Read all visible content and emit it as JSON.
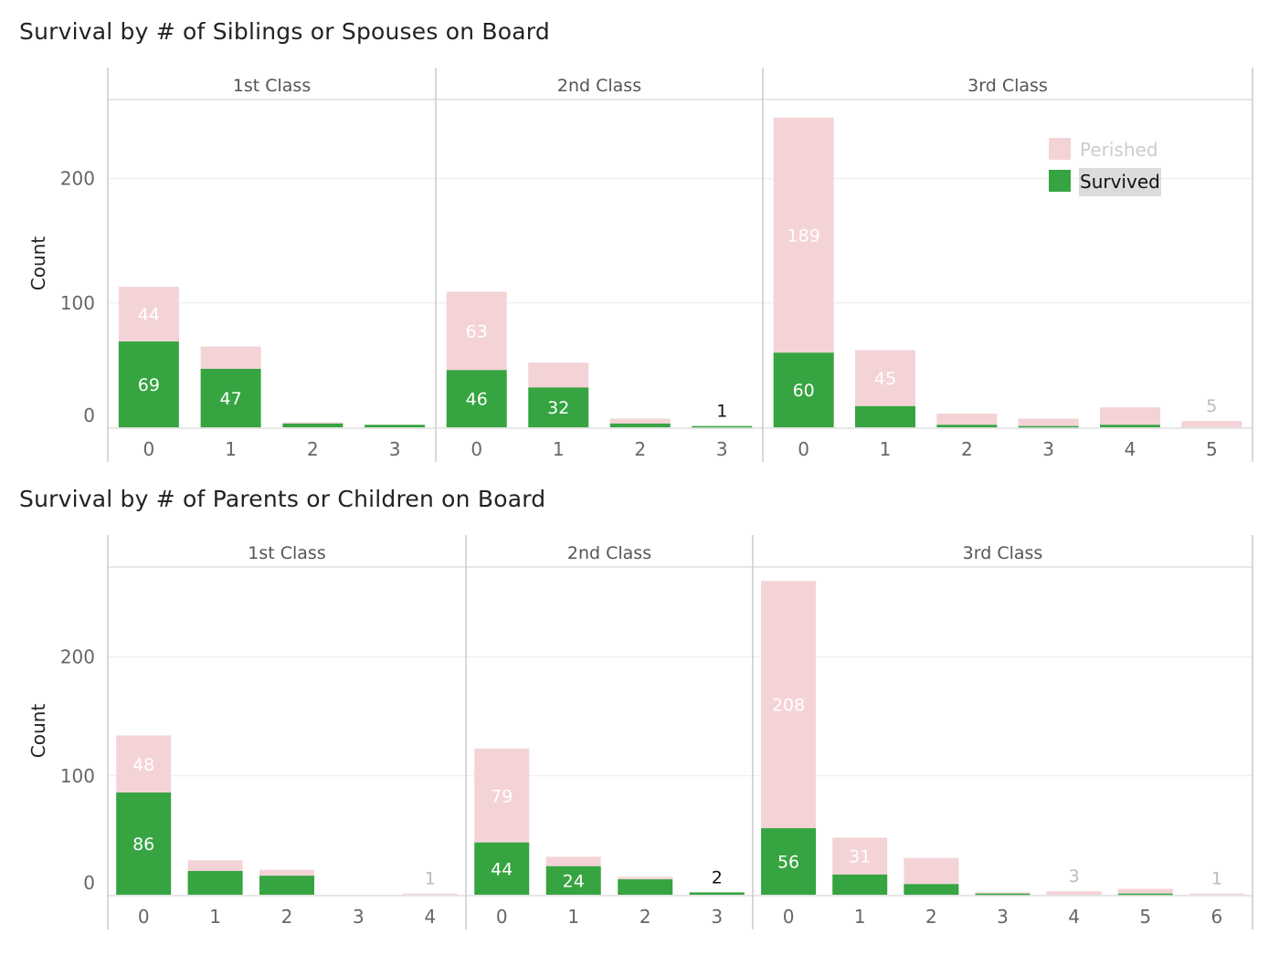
{
  "legend": {
    "items": [
      {
        "label": "Perished",
        "color": "#f4d3d7",
        "text_color": "#cccccc"
      },
      {
        "label": "Survived",
        "color": "#36a441",
        "text_color": "#111111",
        "highlighted": true
      }
    ]
  },
  "colors": {
    "perished": "#f4d3d7",
    "survived": "#36a441",
    "label_on_bar": "#ffffff",
    "label_outside_dark": "#111111",
    "label_outside_light": "#bbbbbb",
    "gridline": "#ececec",
    "panel_border": "#cccccc"
  },
  "chart_data": [
    {
      "type": "bar",
      "stacked": true,
      "title": "Survival by # of Siblings or Spouses on Board",
      "ylabel": "Count",
      "ylim": [
        0,
        260
      ],
      "yticks": [
        0,
        100,
        200
      ],
      "legend_position": "top-right of 3rd Class panel",
      "grid": true,
      "panels": [
        {
          "label": "1st Class",
          "categories": [
            "0",
            "1",
            "2",
            "3"
          ],
          "series": [
            {
              "name": "Survived",
              "values": [
                69,
                47,
                3,
                2
              ]
            },
            {
              "name": "Perished",
              "values": [
                44,
                18,
                1,
                0
              ]
            }
          ],
          "labels": [
            {
              "cat": 0,
              "series": "Survived",
              "text": "69"
            },
            {
              "cat": 0,
              "series": "Perished",
              "text": "44"
            },
            {
              "cat": 1,
              "series": "Survived",
              "text": "47"
            }
          ]
        },
        {
          "label": "2nd Class",
          "categories": [
            "0",
            "1",
            "2",
            "3"
          ],
          "series": [
            {
              "name": "Survived",
              "values": [
                46,
                32,
                3,
                1
              ]
            },
            {
              "name": "Perished",
              "values": [
                63,
                20,
                4,
                0
              ]
            }
          ],
          "labels": [
            {
              "cat": 0,
              "series": "Survived",
              "text": "46"
            },
            {
              "cat": 0,
              "series": "Perished",
              "text": "63"
            },
            {
              "cat": 1,
              "series": "Survived",
              "text": "32"
            },
            {
              "cat": 3,
              "series": "Survived",
              "text": "1",
              "outside": "dark"
            }
          ]
        },
        {
          "label": "3rd Class",
          "categories": [
            "0",
            "1",
            "2",
            "3",
            "4",
            "5"
          ],
          "series": [
            {
              "name": "Survived",
              "values": [
                60,
                17,
                2,
                1,
                2,
                0
              ]
            },
            {
              "name": "Perished",
              "values": [
                189,
                45,
                9,
                6,
                14,
                5
              ]
            }
          ],
          "labels": [
            {
              "cat": 0,
              "series": "Survived",
              "text": "60"
            },
            {
              "cat": 0,
              "series": "Perished",
              "text": "189"
            },
            {
              "cat": 1,
              "series": "Perished",
              "text": "45"
            },
            {
              "cat": 5,
              "series": "Perished",
              "text": "5",
              "outside": "light"
            }
          ]
        }
      ]
    },
    {
      "type": "bar",
      "stacked": true,
      "title": "Survival by # of Parents or Children on Board",
      "ylabel": "Count",
      "ylim": [
        0,
        280
      ],
      "yticks": [
        0,
        100,
        200
      ],
      "grid": true,
      "panels": [
        {
          "label": "1st Class",
          "categories": [
            "0",
            "1",
            "2",
            "3",
            "4"
          ],
          "series": [
            {
              "name": "Survived",
              "values": [
                86,
                20,
                16,
                0,
                0
              ]
            },
            {
              "name": "Perished",
              "values": [
                48,
                9,
                5,
                0,
                1
              ]
            }
          ],
          "labels": [
            {
              "cat": 0,
              "series": "Survived",
              "text": "86"
            },
            {
              "cat": 0,
              "series": "Perished",
              "text": "48"
            },
            {
              "cat": 4,
              "series": "Perished",
              "text": "1",
              "outside": "light"
            }
          ]
        },
        {
          "label": "2nd Class",
          "categories": [
            "0",
            "1",
            "2",
            "3"
          ],
          "series": [
            {
              "name": "Survived",
              "values": [
                44,
                24,
                13,
                2
              ]
            },
            {
              "name": "Perished",
              "values": [
                79,
                8,
                2,
                0
              ]
            }
          ],
          "labels": [
            {
              "cat": 0,
              "series": "Survived",
              "text": "44"
            },
            {
              "cat": 0,
              "series": "Perished",
              "text": "79"
            },
            {
              "cat": 1,
              "series": "Survived",
              "text": "24"
            },
            {
              "cat": 3,
              "series": "Survived",
              "text": "2",
              "outside": "dark"
            }
          ]
        },
        {
          "label": "3rd Class",
          "categories": [
            "0",
            "1",
            "2",
            "3",
            "4",
            "5",
            "6"
          ],
          "series": [
            {
              "name": "Survived",
              "values": [
                56,
                17,
                9,
                1,
                0,
                1,
                0
              ]
            },
            {
              "name": "Perished",
              "values": [
                208,
                31,
                22,
                1,
                3,
                4,
                1
              ]
            }
          ],
          "labels": [
            {
              "cat": 0,
              "series": "Survived",
              "text": "56"
            },
            {
              "cat": 0,
              "series": "Perished",
              "text": "208"
            },
            {
              "cat": 1,
              "series": "Perished",
              "text": "31"
            },
            {
              "cat": 4,
              "series": "Perished",
              "text": "3",
              "outside": "light"
            },
            {
              "cat": 6,
              "series": "Perished",
              "text": "1",
              "outside": "light"
            }
          ]
        }
      ]
    }
  ]
}
